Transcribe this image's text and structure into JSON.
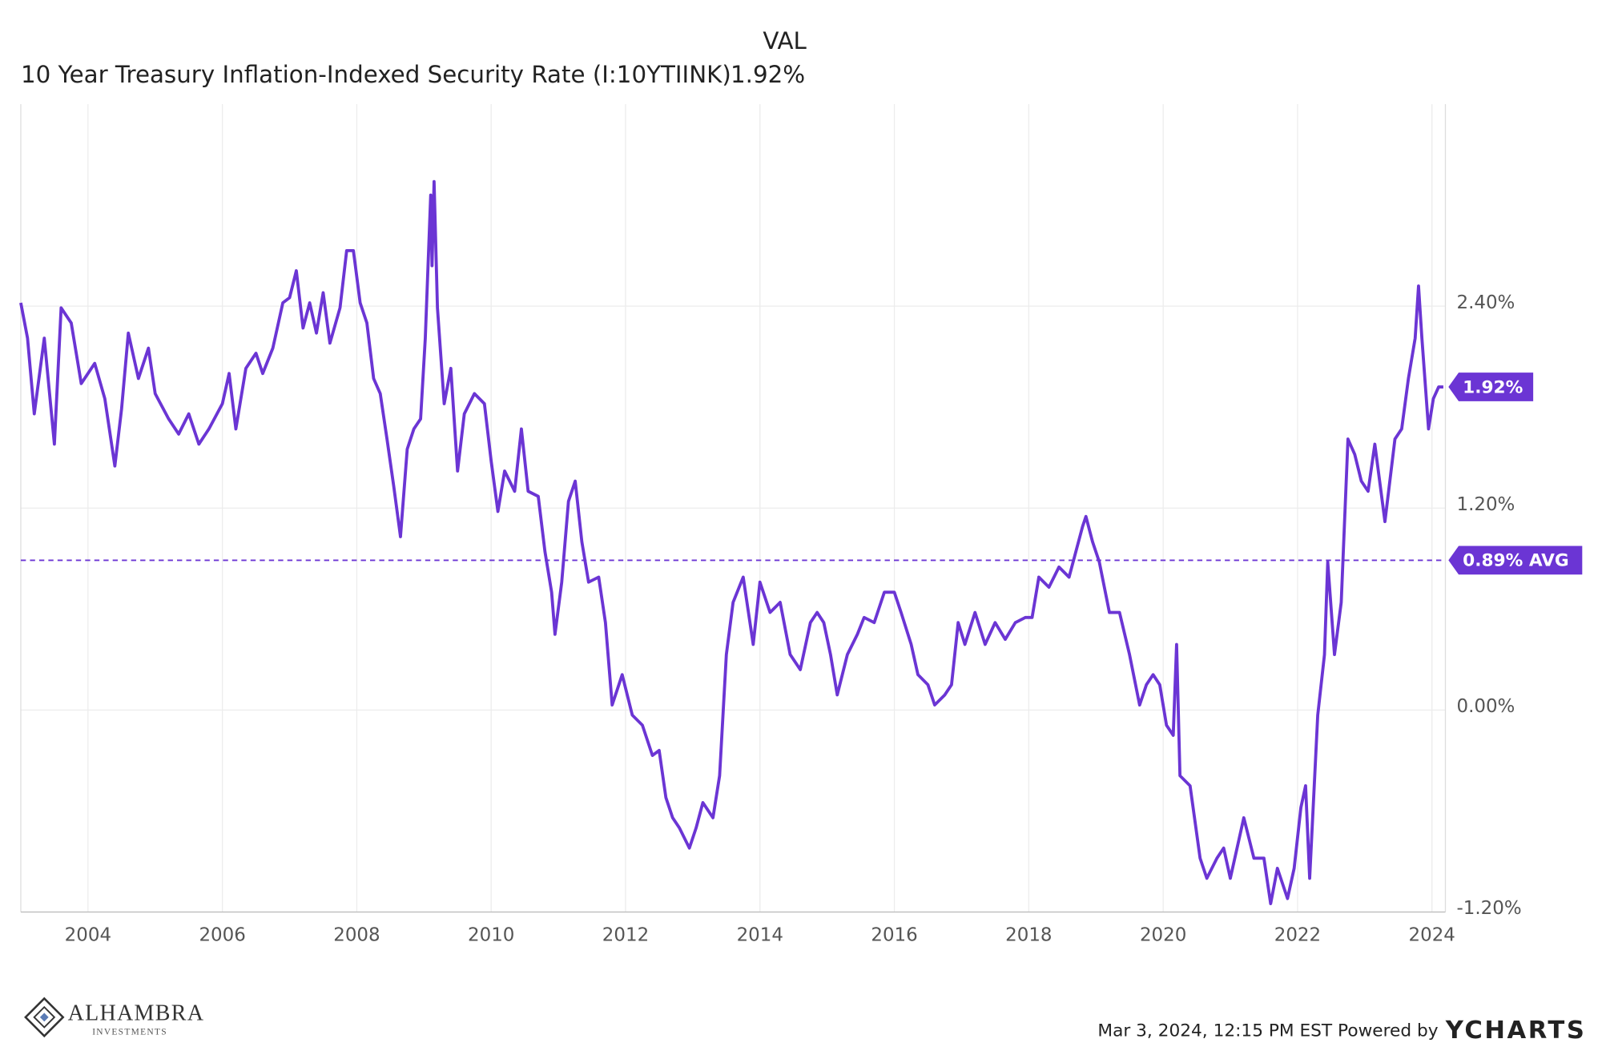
{
  "chart_data": {
    "type": "line",
    "header": "VAL",
    "series": [
      {
        "name": "10 Year Treasury Inflation-Indexed Security Rate (I:10YTIINK)",
        "color": "#6b35d4",
        "values": [
          2.42,
          2.21,
          1.76,
          2.21,
          1.58,
          2.39,
          2.3,
          1.94,
          2.06,
          1.85,
          1.45,
          1.79,
          2.24,
          1.97,
          2.15,
          1.88,
          1.73,
          1.64,
          1.76,
          1.58,
          1.67,
          1.82,
          2.0,
          1.67,
          2.03,
          2.12,
          2.0,
          2.15,
          2.42,
          2.45,
          2.61,
          2.27,
          2.42,
          2.24,
          2.48,
          2.18,
          2.39,
          2.73,
          2.73,
          2.42,
          2.3,
          1.97,
          1.88,
          1.61,
          1.33,
          1.03,
          1.55,
          1.67,
          1.73,
          2.21,
          3.06,
          2.64,
          3.14,
          2.39,
          1.82,
          2.03,
          1.42,
          1.76,
          1.88,
          1.82,
          1.48,
          1.18,
          1.42,
          1.3,
          1.67,
          1.3,
          1.27,
          0.94,
          0.7,
          0.45,
          0.76,
          1.24,
          1.36,
          1.0,
          0.76,
          0.79,
          0.52,
          0.03,
          0.21,
          -0.03,
          -0.09,
          -0.27,
          -0.24,
          -0.52,
          -0.64,
          -0.7,
          -0.82,
          -0.7,
          -0.55,
          -0.64,
          -0.39,
          0.33,
          0.64,
          0.79,
          0.39,
          0.76,
          0.58,
          0.64,
          0.33,
          0.24,
          0.52,
          0.58,
          0.52,
          0.33,
          0.09,
          0.33,
          0.45,
          0.55,
          0.52,
          0.7,
          0.7,
          0.58,
          0.39,
          0.21,
          0.15,
          0.03,
          0.09,
          0.15,
          0.52,
          0.39,
          0.58,
          0.39,
          0.52,
          0.42,
          0.52,
          0.55,
          0.55,
          0.79,
          0.73,
          0.85,
          0.79,
          0.94,
          1.09,
          1.15,
          1.0,
          0.88,
          0.58,
          0.58,
          0.33,
          0.03,
          0.15,
          0.21,
          0.15,
          -0.09,
          -0.15,
          0.39,
          -0.39,
          -0.45,
          -0.88,
          -1.0,
          -0.88,
          -0.82,
          -1.0,
          -0.82,
          -0.64,
          -0.88,
          -0.88,
          -1.15,
          -0.94,
          -1.12,
          -0.94,
          -0.58,
          -0.45,
          -1.0,
          -0.03,
          0.33,
          0.88,
          0.33,
          0.64,
          1.61,
          1.52,
          1.36,
          1.3,
          1.58,
          1.12,
          1.61,
          1.67,
          1.97,
          2.21,
          2.52,
          2.21,
          1.67,
          1.85,
          1.92,
          1.92
        ]
      }
    ],
    "x": [
      2003.0,
      2003.1,
      2003.2,
      2003.35,
      2003.5,
      2003.6,
      2003.75,
      2003.9,
      2004.1,
      2004.25,
      2004.4,
      2004.5,
      2004.6,
      2004.75,
      2004.9,
      2005.0,
      2005.2,
      2005.35,
      2005.5,
      2005.65,
      2005.8,
      2006.0,
      2006.1,
      2006.2,
      2006.35,
      2006.5,
      2006.6,
      2006.75,
      2006.9,
      2007.0,
      2007.1,
      2007.2,
      2007.3,
      2007.4,
      2007.5,
      2007.6,
      2007.75,
      2007.85,
      2007.95,
      2008.05,
      2008.15,
      2008.25,
      2008.35,
      2008.45,
      2008.55,
      2008.65,
      2008.75,
      2008.85,
      2008.95,
      2009.02,
      2009.1,
      2009.12,
      2009.15,
      2009.2,
      2009.3,
      2009.4,
      2009.5,
      2009.6,
      2009.75,
      2009.9,
      2010.0,
      2010.1,
      2010.2,
      2010.35,
      2010.45,
      2010.55,
      2010.7,
      2010.8,
      2010.9,
      2010.95,
      2011.05,
      2011.15,
      2011.25,
      2011.35,
      2011.45,
      2011.6,
      2011.7,
      2011.8,
      2011.95,
      2012.1,
      2012.25,
      2012.4,
      2012.5,
      2012.6,
      2012.7,
      2012.8,
      2012.95,
      2013.05,
      2013.15,
      2013.3,
      2013.4,
      2013.5,
      2013.6,
      2013.75,
      2013.9,
      2014.0,
      2014.15,
      2014.3,
      2014.45,
      2014.6,
      2014.75,
      2014.85,
      2014.95,
      2015.05,
      2015.15,
      2015.3,
      2015.45,
      2015.55,
      2015.7,
      2015.85,
      2016.0,
      2016.1,
      2016.25,
      2016.35,
      2016.5,
      2016.6,
      2016.75,
      2016.85,
      2016.95,
      2017.05,
      2017.2,
      2017.35,
      2017.5,
      2017.65,
      2017.8,
      2017.95,
      2018.05,
      2018.15,
      2018.3,
      2018.45,
      2018.6,
      2018.7,
      2018.8,
      2018.85,
      2018.95,
      2019.05,
      2019.2,
      2019.35,
      2019.5,
      2019.65,
      2019.75,
      2019.85,
      2019.95,
      2020.05,
      2020.15,
      2020.2,
      2020.25,
      2020.4,
      2020.55,
      2020.65,
      2020.8,
      2020.9,
      2021.0,
      2021.1,
      2021.2,
      2021.35,
      2021.5,
      2021.6,
      2021.7,
      2021.85,
      2021.95,
      2022.05,
      2022.12,
      2022.18,
      2022.3,
      2022.4,
      2022.45,
      2022.55,
      2022.65,
      2022.75,
      2022.85,
      2022.95,
      2023.05,
      2023.15,
      2023.3,
      2023.45,
      2023.55,
      2023.65,
      2023.75,
      2023.8,
      2023.85,
      2023.95,
      2024.02,
      2024.1,
      2024.17
    ],
    "xlim": [
      2003.0,
      2024.2
    ],
    "xticks": [
      2004,
      2006,
      2008,
      2010,
      2012,
      2014,
      2016,
      2018,
      2020,
      2022,
      2024
    ],
    "ylim": [
      -1.2,
      3.6
    ],
    "yticks": [
      {
        "value": -1.2,
        "label": "-1.20%"
      },
      {
        "value": 0,
        "label": "0.00%"
      },
      {
        "value": 1.2,
        "label": "1.20%"
      },
      {
        "value": 2.4,
        "label": "2.40%"
      }
    ],
    "grid": true,
    "current": {
      "value": 1.92,
      "label": "1.92%"
    },
    "average": {
      "value": 0.89,
      "label": "0.89% AVG"
    },
    "footer": {
      "timestamp": "Mar 3, 2024, 12:15 PM EST Powered by",
      "brand": "YCHARTS"
    },
    "logo": {
      "name": "ALHAMBRA",
      "tagline": "INVESTMENTS"
    }
  }
}
